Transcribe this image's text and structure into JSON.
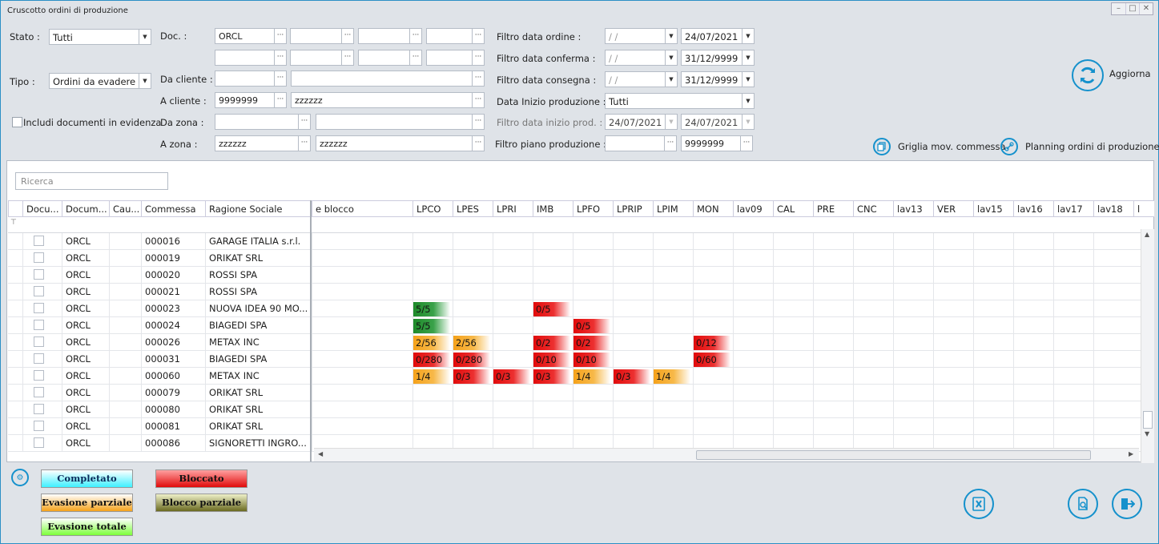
{
  "window": {
    "title": "Cruscotto ordini di produzione",
    "controls": [
      "–",
      "□",
      "✕"
    ]
  },
  "filters": {
    "stato_label": "Stato :",
    "stato_value": "Tutti",
    "tipo_label": "Tipo :",
    "tipo_value": "Ordini da evadere",
    "includi_label": "Includi documenti in evidenza",
    "doc_label": "Doc. :",
    "doc1": "ORCL",
    "da_cliente_label": "Da cliente :",
    "a_cliente_label": "A cliente :",
    "a_cliente_code": "9999999",
    "a_cliente_name": "zzzzzz",
    "da_zona_label": "Da zona :",
    "a_zona_label": "A zona :",
    "a_zona_code": "zzzzzz",
    "a_zona_name": "zzzzzz",
    "data_ordine_label": "Filtro data ordine :",
    "data_ordine_from": " /  /",
    "data_ordine_to": "24/07/2021",
    "data_conferma_label": "Filtro data conferma :",
    "data_conferma_from": " /  /",
    "data_conferma_to": "31/12/9999",
    "data_consegna_label": "Filtro data consegna :",
    "data_consegna_from": " /  /",
    "data_consegna_to": "31/12/9999",
    "inizio_prod_label": "Data Inizio produzione :",
    "inizio_prod_value": "Tutti",
    "data_inizio_label": "Filtro data inizio prod. :",
    "data_inizio_from": "24/07/2021",
    "data_inizio_to": "24/07/2021",
    "piano_label": "Filtro piano produzione :",
    "piano_to": "9999999"
  },
  "actions": {
    "aggiorna": "Aggiorna",
    "griglia": "Griglia mov. commessa",
    "planning": "Planning ordini di produzione"
  },
  "search": {
    "placeholder": "Ricerca"
  },
  "grid": {
    "left_headers": [
      "Docu...",
      "Docum...",
      "Cau...",
      "Commessa",
      "Ragione Sociale"
    ],
    "stage_first": "e blocco",
    "stage_headers": [
      "LPCO",
      "LPES",
      "LPRI",
      "IMB",
      "LPFO",
      "LPRIP",
      "LPIM",
      "MON",
      "lav09",
      "CAL",
      "PRE",
      "CNC",
      "lav13",
      "VER",
      "lav15",
      "lav16",
      "lav17",
      "lav18",
      "l"
    ],
    "rows": [
      {
        "doc": "ORCL",
        "commessa": "000016",
        "ragione": "GARAGE ITALIA s.r.l.",
        "cells": []
      },
      {
        "doc": "ORCL",
        "commessa": "000019",
        "ragione": "ORIKAT SRL",
        "cells": []
      },
      {
        "doc": "ORCL",
        "commessa": "000020",
        "ragione": "ROSSI SPA",
        "cells": []
      },
      {
        "doc": "ORCL",
        "commessa": "000021",
        "ragione": "ROSSI SPA",
        "cells": []
      },
      {
        "doc": "ORCL",
        "commessa": "000023",
        "ragione": "NUOVA IDEA 90 MO...",
        "cells": [
          {
            "col": 0,
            "text": "5/5",
            "color": "g"
          },
          {
            "col": 3,
            "text": "0/5",
            "color": "r"
          }
        ]
      },
      {
        "doc": "ORCL",
        "commessa": "000024",
        "ragione": "BIAGEDI SPA",
        "cells": [
          {
            "col": 0,
            "text": "5/5",
            "color": "g"
          },
          {
            "col": 4,
            "text": "0/5",
            "color": "r"
          }
        ]
      },
      {
        "doc": "ORCL",
        "commessa": "000026",
        "ragione": "METAX INC",
        "cells": [
          {
            "col": 0,
            "text": "2/56",
            "color": "o"
          },
          {
            "col": 1,
            "text": "2/56",
            "color": "o"
          },
          {
            "col": 3,
            "text": "0/2",
            "color": "r"
          },
          {
            "col": 4,
            "text": "0/2",
            "color": "r"
          },
          {
            "col": 7,
            "text": "0/12",
            "color": "r"
          }
        ]
      },
      {
        "doc": "ORCL",
        "commessa": "000031",
        "ragione": "BIAGEDI SPA",
        "cells": [
          {
            "col": 0,
            "text": "0/280",
            "color": "r"
          },
          {
            "col": 1,
            "text": "0/280",
            "color": "r"
          },
          {
            "col": 3,
            "text": "0/10",
            "color": "r"
          },
          {
            "col": 4,
            "text": "0/10",
            "color": "r"
          },
          {
            "col": 7,
            "text": "0/60",
            "color": "r"
          }
        ]
      },
      {
        "doc": "ORCL",
        "commessa": "000060",
        "ragione": "METAX INC",
        "cells": [
          {
            "col": 0,
            "text": "1/4",
            "color": "o"
          },
          {
            "col": 1,
            "text": "0/3",
            "color": "r"
          },
          {
            "col": 2,
            "text": "0/3",
            "color": "r"
          },
          {
            "col": 3,
            "text": "0/3",
            "color": "r"
          },
          {
            "col": 4,
            "text": "1/4",
            "color": "o"
          },
          {
            "col": 5,
            "text": "0/3",
            "color": "r"
          },
          {
            "col": 6,
            "text": "1/4",
            "color": "o"
          }
        ]
      },
      {
        "doc": "ORCL",
        "commessa": "000079",
        "ragione": "ORIKAT SRL",
        "cells": []
      },
      {
        "doc": "ORCL",
        "commessa": "000080",
        "ragione": "ORIKAT SRL",
        "cells": []
      },
      {
        "doc": "ORCL",
        "commessa": "000081",
        "ragione": "ORIKAT SRL",
        "cells": []
      },
      {
        "doc": "ORCL",
        "commessa": "000086",
        "ragione": "SIGNORETTI  INGRO...",
        "cells": []
      }
    ]
  },
  "legend": {
    "completato": "Completato",
    "bloccato": "Bloccato",
    "evasione_parziale": "Evasione parziale",
    "blocco_parziale": "Blocco parziale",
    "evasione_totale": "Evasione totale"
  },
  "colors": {
    "accent": "#1591cc",
    "green": "#1e8a2a",
    "red": "#e10b0b",
    "orange": "#f5a21a"
  }
}
